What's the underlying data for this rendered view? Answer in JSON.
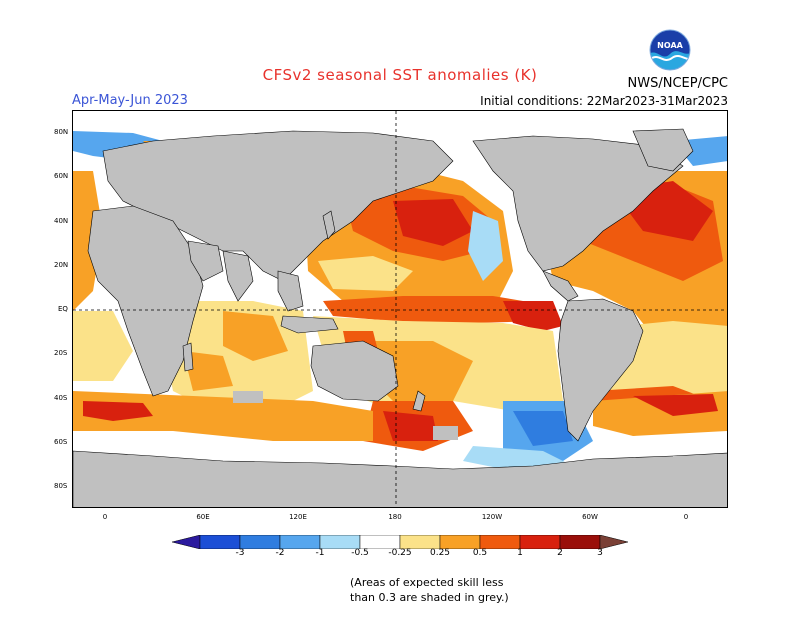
{
  "header": {
    "title": "CFSv2 seasonal SST anomalies (K)",
    "season": "Apr-May-Jun 2023",
    "initial_conditions": "Initial conditions: 22Mar2023-31Mar2023",
    "organization": "NWS/NCEP/CPC",
    "logo_text": "NOAA"
  },
  "map": {
    "lat_labels": [
      "80N",
      "60N",
      "40N",
      "20N",
      "EQ",
      "20S",
      "40S",
      "60S",
      "80S"
    ],
    "lon_labels": [
      "0",
      "60E",
      "120E",
      "180",
      "120W",
      "60W",
      "0"
    ],
    "grey_meaning": "low skill",
    "land_color": "#c0c0c0"
  },
  "colorbar": {
    "labels": [
      "-3",
      "-2",
      "-1",
      "-0.5",
      "-0.25",
      "0.25",
      "0.5",
      "1",
      "2",
      "3"
    ],
    "colors": [
      "#2b1a9e",
      "#1c4fd6",
      "#2f7de0",
      "#56a6ee",
      "#a8dcf6",
      "#ffffff",
      "#fbe289",
      "#f8a126",
      "#ef5a0e",
      "#d8210e",
      "#9a0f0a",
      "#7a4036"
    ]
  },
  "footnote": {
    "line1": "(Areas of expected skill less",
    "line2": "than 0.3 are shaded in grey.)"
  }
}
